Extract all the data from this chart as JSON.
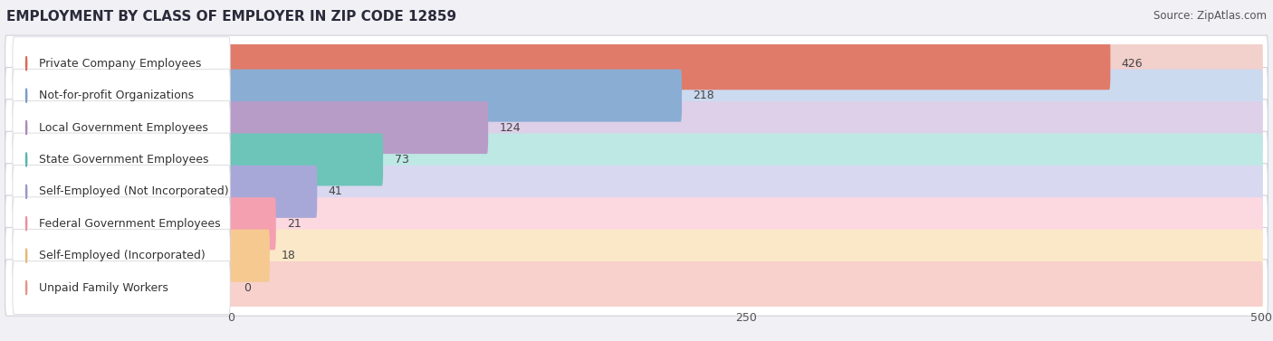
{
  "title": "EMPLOYMENT BY CLASS OF EMPLOYER IN ZIP CODE 12859",
  "source": "Source: ZipAtlas.com",
  "categories": [
    "Private Company Employees",
    "Not-for-profit Organizations",
    "Local Government Employees",
    "State Government Employees",
    "Self-Employed (Not Incorporated)",
    "Federal Government Employees",
    "Self-Employed (Incorporated)",
    "Unpaid Family Workers"
  ],
  "values": [
    426,
    218,
    124,
    73,
    41,
    21,
    18,
    0
  ],
  "bar_colors": [
    "#e07b6a",
    "#8aadd4",
    "#b89cc8",
    "#6dc4b8",
    "#a8a8d8",
    "#f4a0b0",
    "#f5c990",
    "#f0a898"
  ],
  "dot_colors": [
    "#d96b58",
    "#7a9ec5",
    "#a98cbd",
    "#5cb5a8",
    "#9898c8",
    "#e890a0",
    "#e5b878",
    "#e09888"
  ],
  "bar_bg_colors": [
    "#f2d0cc",
    "#ccdaf0",
    "#ddd0e8",
    "#bde8e4",
    "#d8d8f0",
    "#fcd8e0",
    "#fae8c8",
    "#f8d0cc"
  ],
  "xlim": [
    0,
    500
  ],
  "xticks": [
    0,
    250,
    500
  ],
  "title_fontsize": 11,
  "source_fontsize": 8.5,
  "label_fontsize": 9,
  "value_fontsize": 9
}
